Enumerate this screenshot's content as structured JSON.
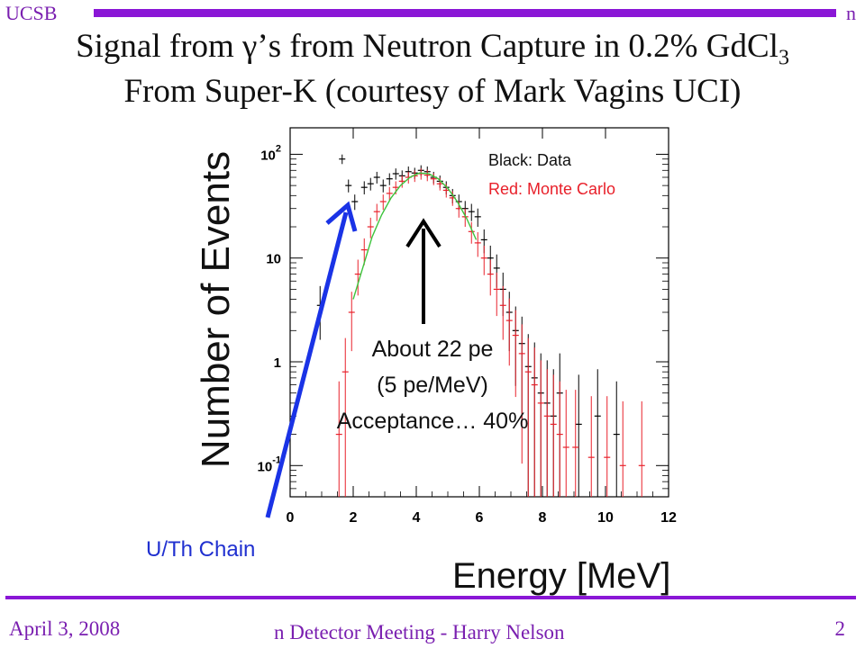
{
  "header": {
    "left": "UCSB",
    "right": "n"
  },
  "title": {
    "line1": "Signal from γ’s from Neutron Capture in 0.2% GdCl",
    "line1_sub": "3",
    "line2": "From Super-K (courtesy of Mark Vagins UCI)"
  },
  "footer": {
    "date": "April 3, 2008",
    "center": "n Detector Meeting - Harry Nelson",
    "page": "2"
  },
  "annotations": {
    "pe": "About 22 pe",
    "pe_rate": "(5 pe/MeV)",
    "acceptance": "Acceptance… 40%",
    "uth": "U/Th Chain"
  },
  "axis_labels": {
    "y": "Number of Events",
    "x": "Energy [MeV]"
  },
  "colors": {
    "accent": "#8a16d6",
    "data": "#000000",
    "mc": "#e8202a",
    "fit": "#3cc43c",
    "arrow_blue": "#1a33e6"
  },
  "chart_data": {
    "type": "scatter",
    "xlabel": "Energy [MeV]",
    "ylabel": "Number of Events",
    "xlim": [
      0,
      12
    ],
    "ylim": [
      0.05,
      180
    ],
    "yscale": "log",
    "x_ticks": [
      "0",
      "2",
      "4",
      "6",
      "8",
      "10",
      "12"
    ],
    "y_ticks": [
      {
        "value": 100,
        "base": "10",
        "exp": "2"
      },
      {
        "value": 10,
        "base": "10",
        "exp": ""
      },
      {
        "value": 1,
        "base": "1",
        "exp": ""
      },
      {
        "value": 0.1,
        "base": "10",
        "exp": "-1"
      }
    ],
    "legend": [
      "Black: Data",
      "Red: Monte Carlo"
    ],
    "series": [
      {
        "name": "Black: Data",
        "color": "#000000",
        "points": [
          [
            0.95,
            3.5
          ],
          [
            1.65,
            90
          ],
          [
            1.85,
            50
          ],
          [
            2.05,
            35
          ],
          [
            2.35,
            48
          ],
          [
            2.55,
            52
          ],
          [
            2.75,
            60
          ],
          [
            2.95,
            50
          ],
          [
            3.15,
            58
          ],
          [
            3.35,
            65
          ],
          [
            3.55,
            62
          ],
          [
            3.75,
            68
          ],
          [
            3.95,
            66
          ],
          [
            4.15,
            70
          ],
          [
            4.35,
            68
          ],
          [
            4.55,
            60
          ],
          [
            4.75,
            55
          ],
          [
            4.95,
            48
          ],
          [
            5.15,
            40
          ],
          [
            5.35,
            35
          ],
          [
            5.55,
            30
          ],
          [
            5.75,
            28
          ],
          [
            5.95,
            25
          ],
          [
            6.15,
            15
          ],
          [
            6.35,
            10
          ],
          [
            6.55,
            8
          ],
          [
            6.75,
            5
          ],
          [
            6.95,
            3
          ],
          [
            7.15,
            2
          ],
          [
            7.35,
            1.5
          ],
          [
            7.55,
            0.9
          ],
          [
            7.75,
            0.7
          ],
          [
            7.95,
            0.5
          ],
          [
            8.15,
            0.4
          ],
          [
            8.35,
            0.3
          ],
          [
            8.55,
            0.5
          ],
          [
            9.15,
            0.25
          ],
          [
            9.75,
            0.3
          ],
          [
            10.35,
            0.2
          ]
        ]
      },
      {
        "name": "Red: Monte Carlo",
        "color": "#e8202a",
        "points": [
          [
            1.55,
            0.2
          ],
          [
            1.75,
            0.8
          ],
          [
            1.95,
            3
          ],
          [
            2.15,
            7
          ],
          [
            2.35,
            12
          ],
          [
            2.55,
            20
          ],
          [
            2.75,
            28
          ],
          [
            2.95,
            35
          ],
          [
            3.15,
            42
          ],
          [
            3.35,
            48
          ],
          [
            3.55,
            55
          ],
          [
            3.75,
            60
          ],
          [
            3.95,
            62
          ],
          [
            4.15,
            65
          ],
          [
            4.35,
            63
          ],
          [
            4.55,
            58
          ],
          [
            4.75,
            52
          ],
          [
            4.95,
            45
          ],
          [
            5.15,
            38
          ],
          [
            5.35,
            30
          ],
          [
            5.55,
            25
          ],
          [
            5.75,
            18
          ],
          [
            5.95,
            14
          ],
          [
            6.15,
            10
          ],
          [
            6.35,
            7
          ],
          [
            6.55,
            5
          ],
          [
            6.75,
            3.5
          ],
          [
            6.95,
            2.5
          ],
          [
            7.15,
            1.8
          ],
          [
            7.35,
            1.2
          ],
          [
            7.55,
            0.8
          ],
          [
            7.75,
            0.6
          ],
          [
            7.95,
            0.4
          ],
          [
            8.15,
            0.3
          ],
          [
            8.35,
            0.25
          ],
          [
            8.55,
            0.2
          ],
          [
            8.75,
            0.15
          ],
          [
            9.05,
            0.15
          ],
          [
            9.55,
            0.12
          ],
          [
            10.05,
            0.12
          ],
          [
            10.55,
            0.1
          ],
          [
            11.15,
            0.1
          ]
        ]
      },
      {
        "name": "",
        "color": "#3cc43c",
        "line": true,
        "points": [
          [
            2.0,
            4
          ],
          [
            2.3,
            8
          ],
          [
            2.6,
            16
          ],
          [
            2.9,
            26
          ],
          [
            3.2,
            38
          ],
          [
            3.5,
            50
          ],
          [
            3.8,
            60
          ],
          [
            4.1,
            66
          ],
          [
            4.4,
            65
          ],
          [
            4.7,
            58
          ],
          [
            5.0,
            47
          ],
          [
            5.3,
            35
          ],
          [
            5.6,
            24
          ],
          [
            5.9,
            15
          ]
        ]
      }
    ]
  }
}
